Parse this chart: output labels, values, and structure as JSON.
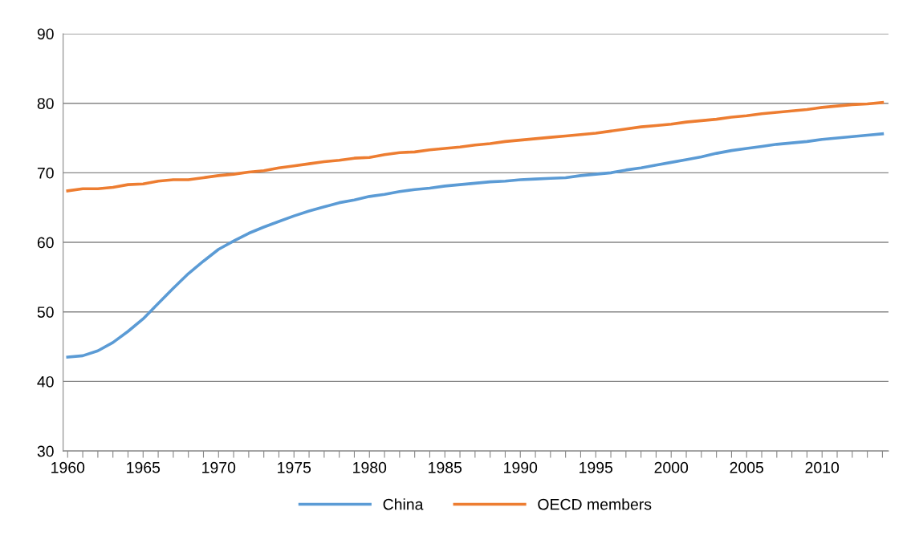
{
  "chart_data": {
    "type": "line",
    "x": [
      1960,
      1961,
      1962,
      1963,
      1964,
      1965,
      1966,
      1967,
      1968,
      1969,
      1970,
      1971,
      1972,
      1973,
      1974,
      1975,
      1976,
      1977,
      1978,
      1979,
      1980,
      1981,
      1982,
      1983,
      1984,
      1985,
      1986,
      1987,
      1988,
      1989,
      1990,
      1991,
      1992,
      1993,
      1994,
      1995,
      1996,
      1997,
      1998,
      1999,
      2000,
      2001,
      2002,
      2003,
      2004,
      2005,
      2006,
      2007,
      2008,
      2009,
      2010,
      2011,
      2012,
      2013,
      2014
    ],
    "series": [
      {
        "name": "China",
        "color": "#5b9bd5",
        "values": [
          43.5,
          43.7,
          44.4,
          45.6,
          47.2,
          49.0,
          51.2,
          53.4,
          55.5,
          57.3,
          59.0,
          60.2,
          61.3,
          62.2,
          63.0,
          63.8,
          64.5,
          65.1,
          65.7,
          66.1,
          66.6,
          66.9,
          67.3,
          67.6,
          67.8,
          68.1,
          68.3,
          68.5,
          68.7,
          68.8,
          69.0,
          69.1,
          69.2,
          69.3,
          69.6,
          69.8,
          70.0,
          70.4,
          70.7,
          71.1,
          71.5,
          71.9,
          72.3,
          72.8,
          73.2,
          73.5,
          73.8,
          74.1,
          74.3,
          74.5,
          74.8,
          75.0,
          75.2,
          75.4,
          75.6
        ]
      },
      {
        "name": "OECD members",
        "color": "#ed7d31",
        "values": [
          67.4,
          67.7,
          67.7,
          67.9,
          68.3,
          68.4,
          68.8,
          69.0,
          69.0,
          69.3,
          69.6,
          69.8,
          70.1,
          70.3,
          70.7,
          71.0,
          71.3,
          71.6,
          71.8,
          72.1,
          72.2,
          72.6,
          72.9,
          73.0,
          73.3,
          73.5,
          73.7,
          74.0,
          74.2,
          74.5,
          74.7,
          74.9,
          75.1,
          75.3,
          75.5,
          75.7,
          76.0,
          76.3,
          76.6,
          76.8,
          77.0,
          77.3,
          77.5,
          77.7,
          78.0,
          78.2,
          78.5,
          78.7,
          78.9,
          79.1,
          79.4,
          79.6,
          79.8,
          79.9,
          80.1
        ]
      }
    ],
    "xlim": [
      1959.7,
      2014.4
    ],
    "xticks": [
      1960,
      {
        "value": 1961,
        "label": null
      },
      {
        "value": 1962,
        "label": null
      },
      {
        "value": 1963,
        "label": null
      },
      {
        "value": 1964,
        "label": null
      },
      1965,
      {
        "value": 1966,
        "label": null
      },
      {
        "value": 1967,
        "label": null
      },
      {
        "value": 1968,
        "label": null
      },
      {
        "value": 1969,
        "label": null
      },
      1970,
      {
        "value": 1971,
        "label": null
      },
      {
        "value": 1972,
        "label": null
      },
      {
        "value": 1973,
        "label": null
      },
      {
        "value": 1974,
        "label": null
      },
      1975,
      {
        "value": 1976,
        "label": null
      },
      {
        "value": 1977,
        "label": null
      },
      {
        "value": 1978,
        "label": null
      },
      {
        "value": 1979,
        "label": null
      },
      1980,
      {
        "value": 1981,
        "label": null
      },
      {
        "value": 1982,
        "label": null
      },
      {
        "value": 1983,
        "label": null
      },
      {
        "value": 1984,
        "label": null
      },
      1985,
      {
        "value": 1986,
        "label": null
      },
      {
        "value": 1987,
        "label": null
      },
      {
        "value": 1988,
        "label": null
      },
      {
        "value": 1989,
        "label": null
      },
      1990,
      {
        "value": 1991,
        "label": null
      },
      {
        "value": 1992,
        "label": null
      },
      {
        "value": 1993,
        "label": null
      },
      {
        "value": 1994,
        "label": null
      },
      1995,
      {
        "value": 1996,
        "label": null
      },
      {
        "value": 1997,
        "label": null
      },
      {
        "value": 1998,
        "label": null
      },
      {
        "value": 1999,
        "label": null
      },
      2000,
      {
        "value": 2001,
        "label": null
      },
      {
        "value": 2002,
        "label": null
      },
      {
        "value": 2003,
        "label": null
      },
      {
        "value": 2004,
        "label": null
      },
      2005,
      {
        "value": 2006,
        "label": null
      },
      {
        "value": 2007,
        "label": null
      },
      {
        "value": 2008,
        "label": null
      },
      {
        "value": 2009,
        "label": null
      },
      2010,
      {
        "value": 2011,
        "label": null
      },
      {
        "value": 2012,
        "label": null
      },
      {
        "value": 2013,
        "label": null
      },
      {
        "value": 2014,
        "label": null
      }
    ],
    "ylim": [
      30,
      90
    ],
    "yticks": [
      30,
      40,
      50,
      60,
      70,
      80,
      90
    ],
    "grid": "y",
    "legend": "bottom",
    "marker": "none",
    "line_style": "solid"
  }
}
